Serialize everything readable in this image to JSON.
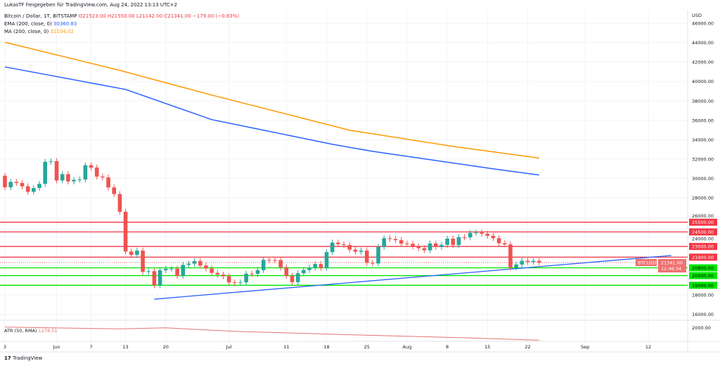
{
  "header": {
    "title": "LukasTF freigegeben für TradingView.com, Aug 24, 2022 13:13 UTC+2"
  },
  "legend": {
    "symbol": "Bitcoin / Dollar, 1T, BITSTAMP",
    "o": "O21523.00",
    "h": "H21550.00",
    "l": "L21142.00",
    "c": "C21341.00",
    "chg": "−179.00 (−0.83%)",
    "ema_label": "EMA (200, close, 0)",
    "ema_value": "30360.83",
    "ma_label": "MA (200, close, 0)",
    "ma_value": "32104.02",
    "atr_label": "ATR (50, RMA)",
    "atr_value": "1278.51"
  },
  "axis": {
    "currency": "USD",
    "price_ticks": [
      "46000.00",
      "44000.00",
      "42000.00",
      "40000.00",
      "38000.00",
      "36000.00",
      "34000.00",
      "32000.00",
      "30000.00",
      "28000.00",
      "26000.00",
      "24000.00",
      "18000.00",
      "16000.00"
    ],
    "atr_tick": "2000.00",
    "date_ticks": [
      {
        "label": "3",
        "day": 0
      },
      {
        "label": "Jun",
        "day": 9
      },
      {
        "label": "7",
        "day": 15
      },
      {
        "label": "13",
        "day": 21
      },
      {
        "label": "20",
        "day": 28
      },
      {
        "label": "Jul",
        "day": 39
      },
      {
        "label": "11",
        "day": 49
      },
      {
        "label": "18",
        "day": 56
      },
      {
        "label": "25",
        "day": 63
      },
      {
        "label": "Aug",
        "day": 70
      },
      {
        "label": "8",
        "day": 77
      },
      {
        "label": "15",
        "day": 84
      },
      {
        "label": "22",
        "day": 91
      },
      {
        "label": "Sep",
        "day": 101
      },
      {
        "label": "12",
        "day": 112
      }
    ]
  },
  "levels": [
    {
      "price": 25500,
      "label": "25500.00",
      "color": "#f23645"
    },
    {
      "price": 24500,
      "label": "24500.00",
      "color": "#f23645"
    },
    {
      "price": 23000,
      "label": "23000.00",
      "color": "#f23645"
    },
    {
      "price": 21900,
      "label": "21900.00",
      "color": "#f23645"
    },
    {
      "price": 20800,
      "label": "20800.00",
      "color": "#00e600"
    },
    {
      "price": 20000,
      "label": "20000.00",
      "color": "#00e600"
    },
    {
      "price": 19000,
      "label": "19000.00",
      "color": "#00e600"
    }
  ],
  "last": {
    "symbol": "BTCUSD",
    "price": 21341,
    "label": "21341.00",
    "countdown": "12:46:34"
  },
  "footer": {
    "brand": "TradingView"
  },
  "colors": {
    "up": "#26a69a",
    "down": "#ef5350",
    "ema": "#2962ff",
    "ma": "#ff9800",
    "atr": "#e57373",
    "trend": "#2962ff"
  },
  "chart_data": {
    "type": "candlestick",
    "start": "2022-05-23",
    "interval": "1D",
    "ohlc_oc": [
      [
        30290,
        29100
      ],
      [
        29100,
        29650
      ],
      [
        29650,
        29540
      ],
      [
        29540,
        29200
      ],
      [
        29200,
        28630
      ],
      [
        28630,
        29020
      ],
      [
        29020,
        29450
      ],
      [
        29450,
        31720
      ],
      [
        31720,
        31790
      ],
      [
        31790,
        29800
      ],
      [
        29800,
        30450
      ],
      [
        30450,
        29700
      ],
      [
        29700,
        29860
      ],
      [
        29860,
        29900
      ],
      [
        29900,
        31370
      ],
      [
        31370,
        31130
      ],
      [
        31130,
        30200
      ],
      [
        30200,
        30110
      ],
      [
        30110,
        29080
      ],
      [
        29080,
        28400
      ],
      [
        28400,
        26580
      ],
      [
        26580,
        22480
      ],
      [
        22480,
        22130
      ],
      [
        22130,
        22570
      ],
      [
        22570,
        20380
      ],
      [
        20380,
        20450
      ],
      [
        20450,
        19000
      ],
      [
        19000,
        20550
      ],
      [
        20550,
        20700
      ],
      [
        20700,
        20720
      ],
      [
        20720,
        19970
      ],
      [
        19970,
        21100
      ],
      [
        21100,
        21230
      ],
      [
        21230,
        21500
      ],
      [
        21500,
        21030
      ],
      [
        21030,
        20730
      ],
      [
        20730,
        20280
      ],
      [
        20280,
        20100
      ],
      [
        20100,
        19930
      ],
      [
        19930,
        19300
      ],
      [
        19300,
        19250
      ],
      [
        19250,
        19300
      ],
      [
        19300,
        20200
      ],
      [
        20200,
        20180
      ],
      [
        20180,
        20560
      ],
      [
        20560,
        21620
      ],
      [
        21620,
        21600
      ],
      [
        21600,
        21590
      ],
      [
        21590,
        20850
      ],
      [
        20850,
        19970
      ],
      [
        19970,
        19330
      ],
      [
        19330,
        20240
      ],
      [
        20240,
        20580
      ],
      [
        20580,
        20830
      ],
      [
        20830,
        21190
      ],
      [
        21190,
        20790
      ],
      [
        20790,
        22420
      ],
      [
        22420,
        23400
      ],
      [
        23400,
        23240
      ],
      [
        23240,
        23150
      ],
      [
        23150,
        22680
      ],
      [
        22680,
        22460
      ],
      [
        22460,
        22580
      ],
      [
        22580,
        21310
      ],
      [
        21310,
        21250
      ],
      [
        21250,
        22950
      ],
      [
        22950,
        23850
      ],
      [
        23850,
        23770
      ],
      [
        23770,
        23650
      ],
      [
        23650,
        23300
      ],
      [
        23300,
        23270
      ],
      [
        23270,
        22990
      ],
      [
        22990,
        22820
      ],
      [
        22820,
        22610
      ],
      [
        22610,
        23310
      ],
      [
        23310,
        22960
      ],
      [
        22960,
        23170
      ],
      [
        23170,
        23810
      ],
      [
        23810,
        23150
      ],
      [
        23150,
        23950
      ],
      [
        23950,
        23940
      ],
      [
        23940,
        24400
      ],
      [
        24400,
        24440
      ],
      [
        24440,
        24310
      ],
      [
        24310,
        24100
      ],
      [
        24100,
        23850
      ],
      [
        23850,
        23340
      ],
      [
        23340,
        23210
      ],
      [
        23210,
        20830
      ],
      [
        20830,
        21140
      ],
      [
        21140,
        21520
      ],
      [
        21520,
        21400
      ],
      [
        21400,
        21520
      ],
      [
        21523,
        21341
      ]
    ],
    "ema": [
      [
        0,
        41500
      ],
      [
        21,
        39180
      ],
      [
        36,
        36070
      ],
      [
        57,
        33530
      ],
      [
        64,
        32800
      ],
      [
        85,
        31000
      ],
      [
        93,
        30360
      ]
    ],
    "ma": [
      [
        0,
        44040
      ],
      [
        20,
        41140
      ],
      [
        36,
        38600
      ],
      [
        60,
        34980
      ],
      [
        78,
        33310
      ],
      [
        93,
        32104
      ]
    ],
    "trendline": [
      [
        26,
        17570
      ],
      [
        116,
        22070
      ]
    ],
    "atr": [
      [
        0,
        2050
      ],
      [
        20,
        1950
      ],
      [
        28,
        2010
      ],
      [
        40,
        1800
      ],
      [
        60,
        1600
      ],
      [
        80,
        1420
      ],
      [
        93,
        1278
      ]
    ],
    "ylim": [
      15000,
      47000
    ]
  }
}
